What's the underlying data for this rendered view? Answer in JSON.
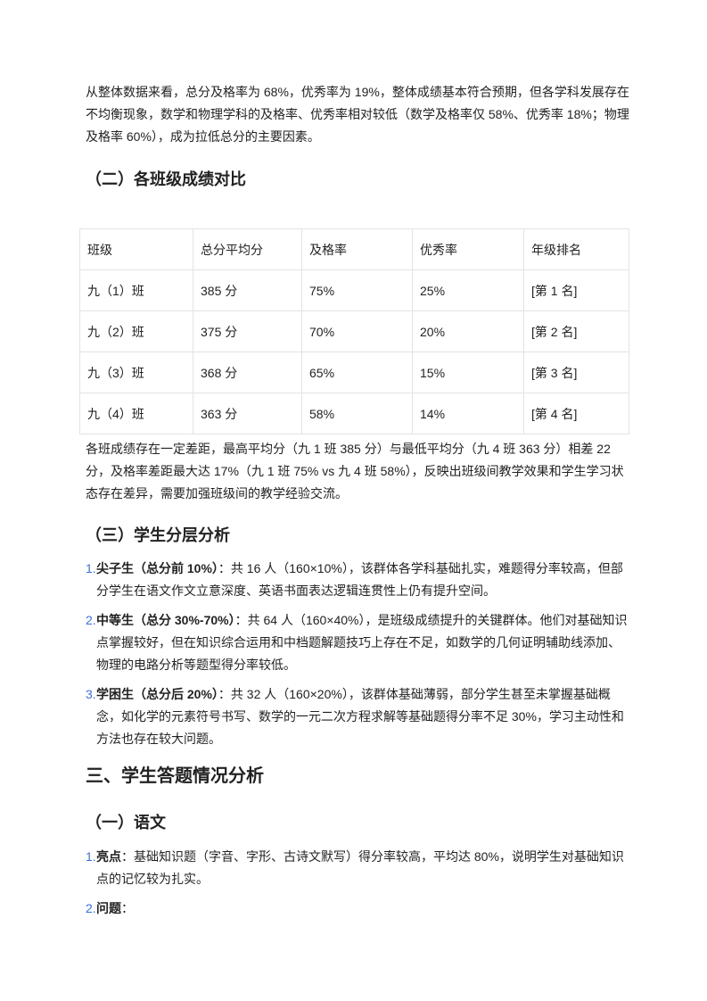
{
  "intro_paragraph": "从整体数据来看，总分及格率为 68%，优秀率为 19%，整体成绩基本符合预期，但各学科发展存在不均衡现象，数学和物理学科的及格率、优秀率相对较低（数学及格率仅 58%、优秀率 18%；物理及格率 60%），成为拉低总分的主要因素。",
  "heading_class_compare": "（二）各班级成绩对比",
  "table": {
    "headers": [
      "班级",
      "总分平均分",
      "及格率",
      "优秀率",
      "年级排名"
    ],
    "rows": [
      [
        "九（1）班",
        "385 分",
        "75%",
        "25%",
        "[第 1 名]"
      ],
      [
        "九（2）班",
        "375 分",
        "70%",
        "20%",
        "[第 2 名]"
      ],
      [
        "九（3）班",
        "368 分",
        "65%",
        "15%",
        "[第 3 名]"
      ],
      [
        "九（4）班",
        "363 分",
        "58%",
        "14%",
        "[第 4 名]"
      ]
    ]
  },
  "class_paragraph": "各班成绩存在一定差距，最高平均分（九 1 班 385 分）与最低平均分（九 4 班 363 分）相差 22 分，及格率差距最大达 17%（九 1 班 75% vs 九 4 班 58%），反映出班级间教学效果和学生学习状态存在差异，需要加强班级间的教学经验交流。",
  "heading_layers": "（三）学生分层分析",
  "layers": [
    {
      "num": "1.",
      "label": "尖子生（总分前 10%）",
      "text": "：共 16 人（160×10%），该群体各学科基础扎实，难题得分率较高，但部分学生在语文作文立意深度、英语书面表达逻辑连贯性上仍有提升空间。"
    },
    {
      "num": "2.",
      "label": "中等生（总分 30%-70%）",
      "text": "：共 64 人（160×40%），是班级成绩提升的关键群体。他们对基础知识点掌握较好，但在知识综合运用和中档题解题技巧上存在不足，如数学的几何证明辅助线添加、物理的电路分析等题型得分率较低。"
    },
    {
      "num": "3.",
      "label": "学困生（总分后 20%）",
      "text": "：共 32 人（160×20%），该群体基础薄弱，部分学生甚至未掌握基础概念，如化学的元素符号书写、数学的一元二次方程求解等基础题得分率不足 30%，学习主动性和方法也存在较大问题。"
    }
  ],
  "heading_section3": "三、学生答题情况分析",
  "heading_chinese": "（一）语文",
  "chinese_items": [
    {
      "num": "1.",
      "label": "亮点",
      "text": "：基础知识题（字音、字形、古诗文默写）得分率较高，平均达 80%，说明学生对基础知识点的记忆较为扎实。"
    },
    {
      "num": "2.",
      "label": "问题",
      "text": "："
    }
  ]
}
